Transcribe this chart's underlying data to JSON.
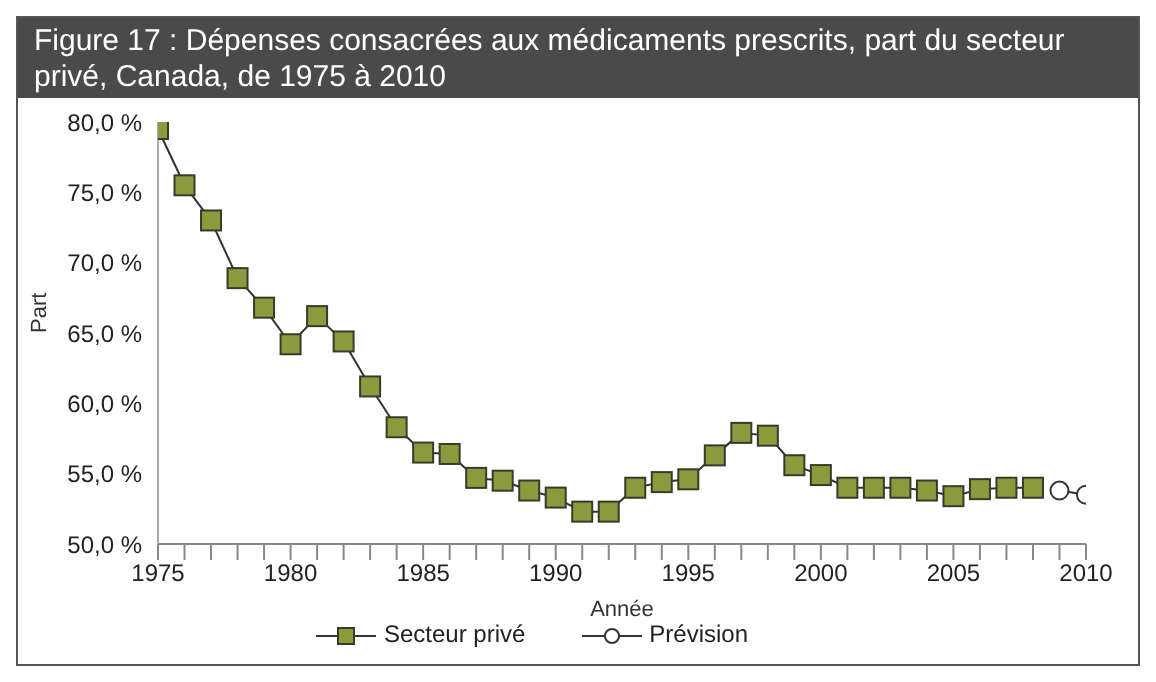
{
  "chart_data": {
    "type": "line",
    "title": "Figure 17 : Dépenses consacrées aux médicaments prescrits, part du secteur privé, Canada, de 1975 à 2010",
    "xlabel": "Année",
    "ylabel": "Part",
    "series": [
      {
        "name": "Secteur privé",
        "color": "#8b9a3c",
        "marker": "square",
        "x": [
          1975,
          1976,
          1977,
          1978,
          1979,
          1980,
          1981,
          1982,
          1983,
          1984,
          1985,
          1986,
          1987,
          1988,
          1989,
          1990,
          1991,
          1992,
          1993,
          1994,
          1995,
          1996,
          1997,
          1998,
          1999,
          2000,
          2001,
          2002,
          2003,
          2004,
          2005,
          2006,
          2007,
          2008
        ],
        "values": [
          79.5,
          75.5,
          73.0,
          68.9,
          66.8,
          64.2,
          66.2,
          64.4,
          61.2,
          58.3,
          56.5,
          56.4,
          54.7,
          54.5,
          53.8,
          53.3,
          52.3,
          52.3,
          54.0,
          54.4,
          54.6,
          56.3,
          57.9,
          57.7,
          55.6,
          54.9,
          54.0,
          54.0,
          54.0,
          53.8,
          53.4,
          53.9,
          54.0,
          54.0
        ]
      },
      {
        "name": "Prévision",
        "color": "#333333",
        "marker": "circle",
        "x": [
          2009,
          2010
        ],
        "values": [
          53.8,
          53.5
        ]
      }
    ],
    "xlim": [
      1975,
      2010
    ],
    "xticks": [
      1975,
      {
        "value": 1976,
        "label": null
      },
      {
        "value": 1977,
        "label": null
      },
      {
        "value": 1978,
        "label": null
      },
      {
        "value": 1979,
        "label": null
      },
      1980,
      {
        "value": 1981,
        "label": null
      },
      {
        "value": 1982,
        "label": null
      },
      {
        "value": 1983,
        "label": null
      },
      {
        "value": 1984,
        "label": null
      },
      1985,
      {
        "value": 1986,
        "label": null
      },
      {
        "value": 1987,
        "label": null
      },
      {
        "value": 1988,
        "label": null
      },
      {
        "value": 1989,
        "label": null
      },
      1990,
      {
        "value": 1991,
        "label": null
      },
      {
        "value": 1992,
        "label": null
      },
      {
        "value": 1993,
        "label": null
      },
      {
        "value": 1994,
        "label": null
      },
      1995,
      {
        "value": 1996,
        "label": null
      },
      {
        "value": 1997,
        "label": null
      },
      {
        "value": 1998,
        "label": null
      },
      {
        "value": 1999,
        "label": null
      },
      2000,
      {
        "value": 2001,
        "label": null
      },
      {
        "value": 2002,
        "label": null
      },
      {
        "value": 2003,
        "label": null
      },
      {
        "value": 2004,
        "label": null
      },
      2005,
      {
        "value": 2006,
        "label": null
      },
      {
        "value": 2007,
        "label": null
      },
      {
        "value": 2008,
        "label": null
      },
      {
        "value": 2009,
        "label": null
      },
      2010
    ],
    "ylim": [
      50,
      80
    ],
    "yticks": [
      {
        "value": 50,
        "label": "50,0 %"
      },
      {
        "value": 55,
        "label": "55,0 %"
      },
      {
        "value": 60,
        "label": "60,0 %"
      },
      {
        "value": 65,
        "label": "65,0 %"
      },
      {
        "value": 70,
        "label": "70,0 %"
      },
      {
        "value": 75,
        "label": "75,0 %"
      },
      {
        "value": 80,
        "label": "80,0 %"
      }
    ],
    "grid": false,
    "legend": "bottom"
  }
}
